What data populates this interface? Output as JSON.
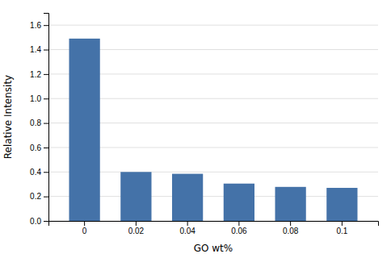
{
  "chart_data": {
    "type": "bar",
    "categories": [
      "0",
      "0.02",
      "0.04",
      "0.06",
      "0.08",
      "0.1"
    ],
    "values": [
      1.49,
      0.4,
      0.385,
      0.305,
      0.278,
      0.27
    ],
    "color": "#4472a8",
    "xlabel": "GO wt%",
    "ylabel": "Relative Intensity",
    "ylim": [
      0,
      1.7
    ],
    "yticks": [
      {
        "value": 0,
        "label": "0.0"
      },
      0.2,
      0.4,
      0.6,
      0.8,
      {
        "value": 1.0,
        "label": "1.0"
      },
      1.2,
      1.4,
      1.6
    ],
    "grid": true
  }
}
